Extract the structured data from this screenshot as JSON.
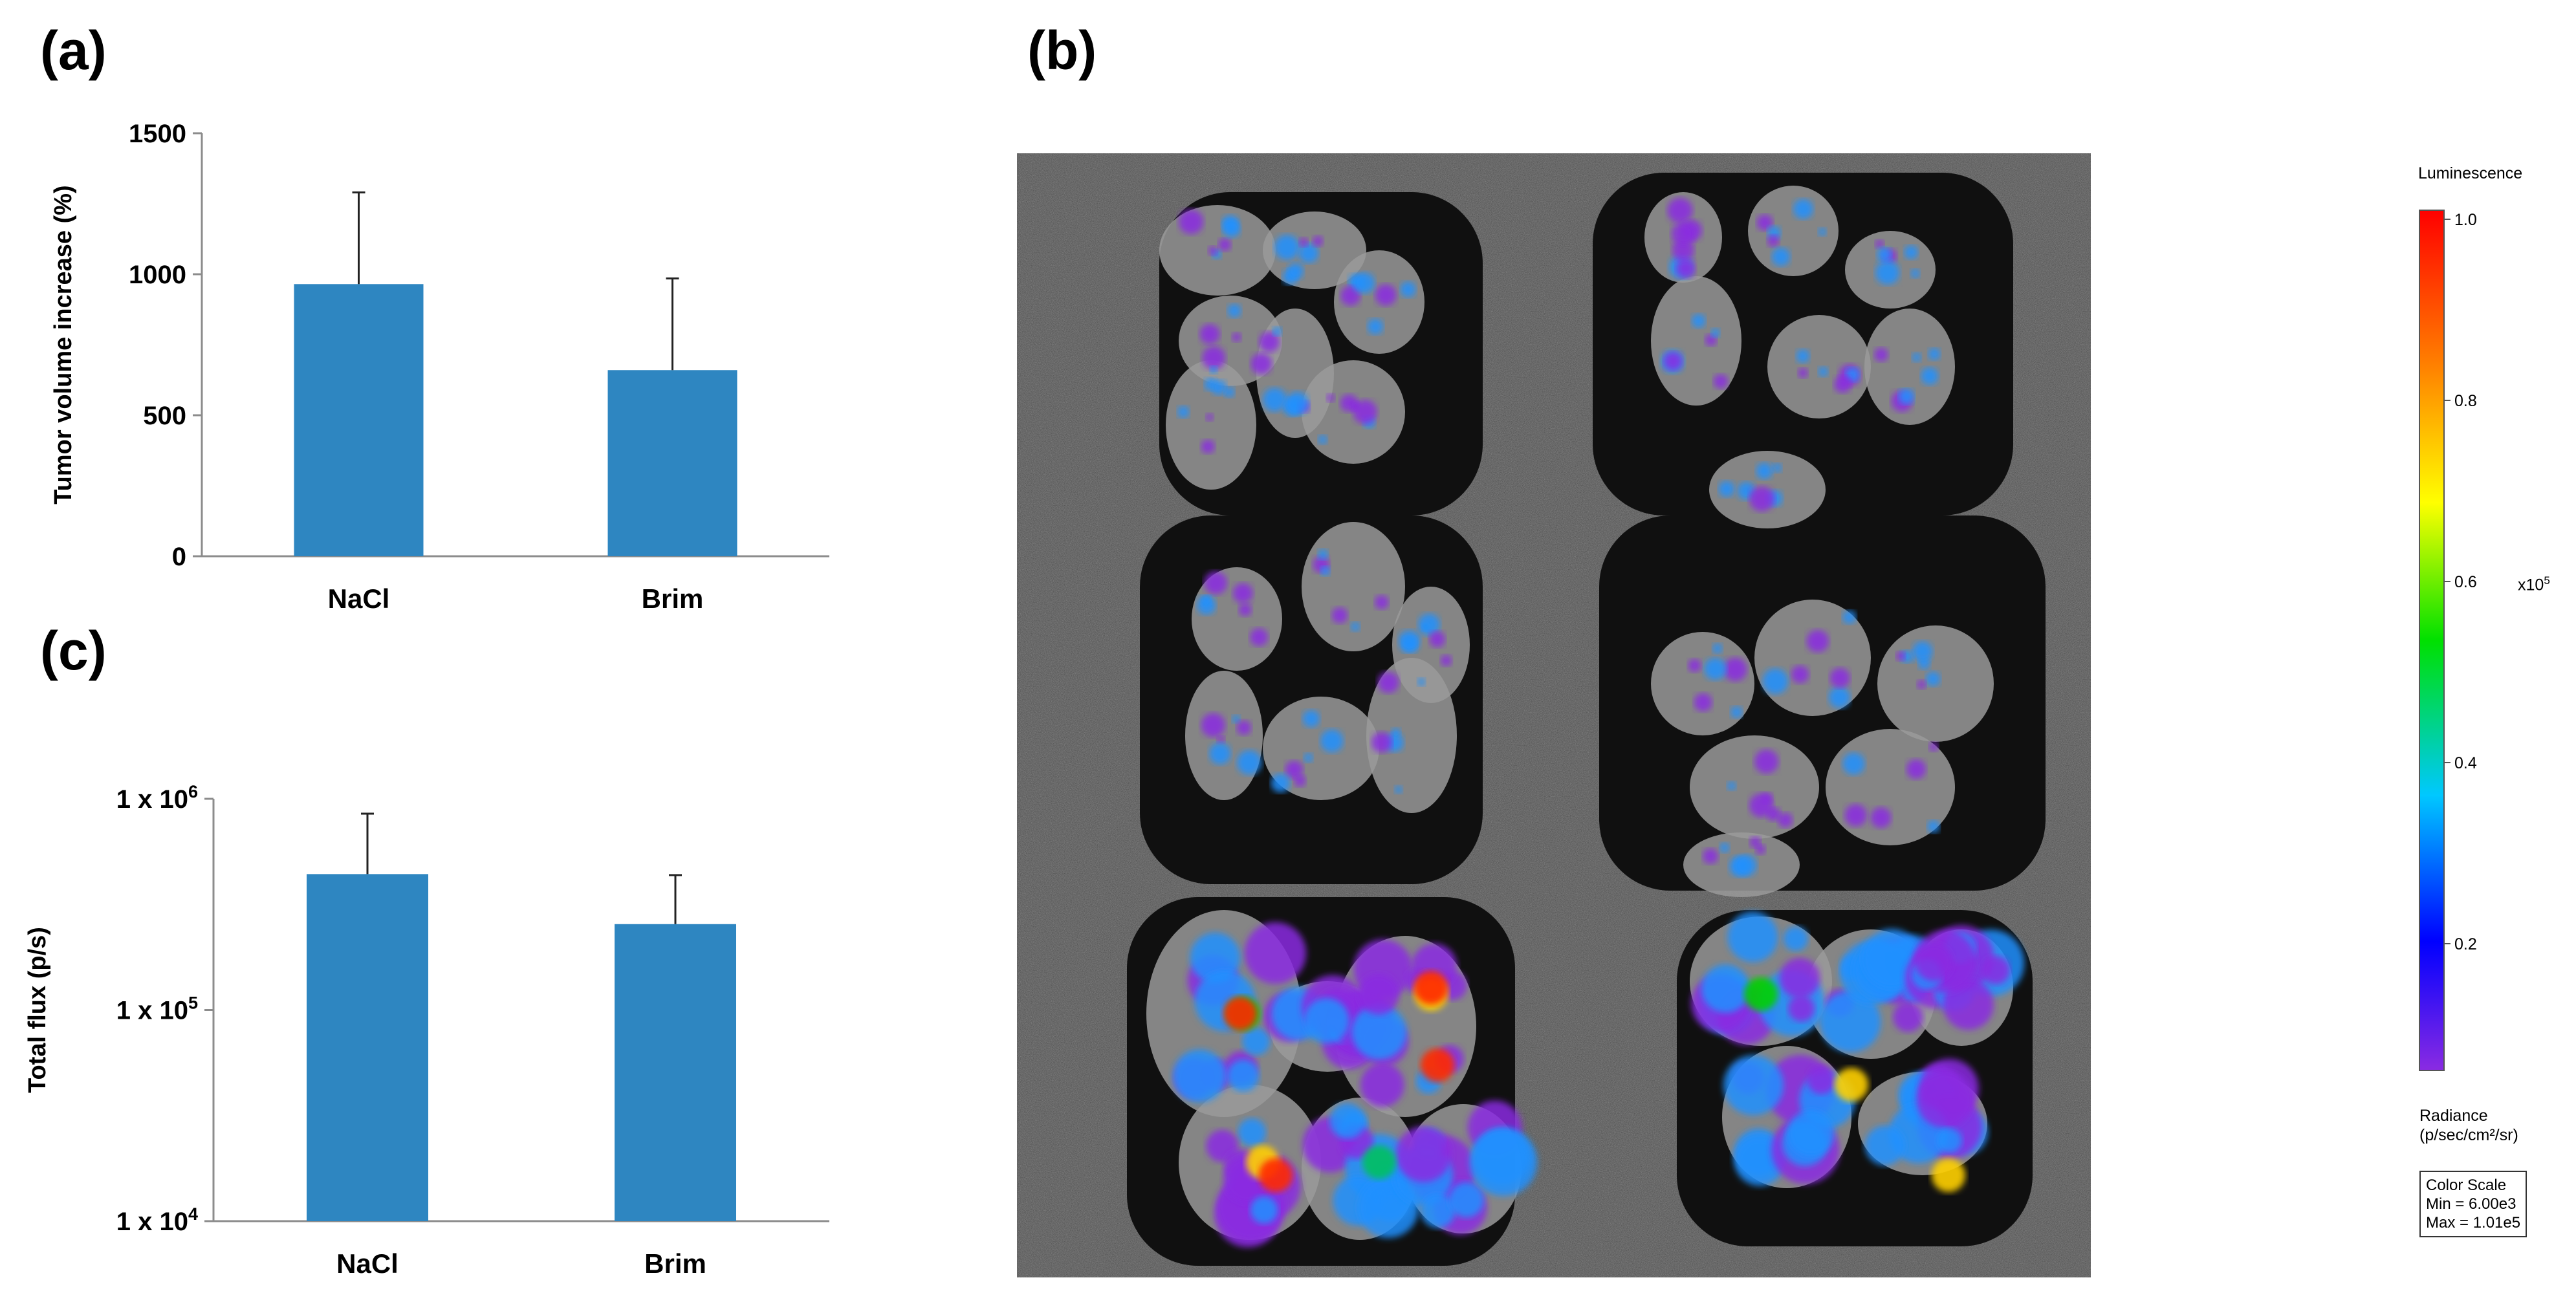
{
  "panels": {
    "a": "(a)",
    "b": "(b)",
    "c": "(c)"
  },
  "chart_data": [
    {
      "id": "a",
      "type": "bar",
      "categories": [
        "NaCl",
        "Brim"
      ],
      "values": [
        965,
        660
      ],
      "errors": [
        325,
        325
      ],
      "ylabel": "Tumor volume increase  (%)",
      "xlabel": "",
      "ylim": [
        0,
        1500
      ],
      "yticks": [
        0,
        500,
        1000,
        1500
      ],
      "ytick_labels": [
        "0",
        "500",
        "1000",
        "1500"
      ],
      "yscale": "linear",
      "bar_color": "#2E86C1",
      "grid": false
    },
    {
      "id": "c",
      "type": "bar",
      "categories": [
        "NaCl",
        "Brim"
      ],
      "values": [
        440000,
        255000
      ],
      "error_tops": [
        850000,
        435000
      ],
      "ylabel": "Total flux (p/s)",
      "xlabel": "",
      "ylim": [
        10000,
        1000000
      ],
      "yticks": [
        10000,
        100000,
        1000000
      ],
      "ytick_labels": [
        {
          "base": "1 x 10",
          "exp": "4"
        },
        {
          "base": "1 x 10",
          "exp": "5"
        },
        {
          "base": "1 x 10",
          "exp": "6"
        }
      ],
      "yscale": "log",
      "bar_color": "#2E86C1",
      "grid": false
    }
  ],
  "image_b": {
    "colors": {
      "background": "#4a4a4a",
      "tissue": "#9a9a9a",
      "signal_low": "#8a2be2",
      "signal_mid": "#1e90ff",
      "signal_high": "#ff2a00"
    }
  },
  "colorbar": {
    "title": "Luminescence",
    "ticks": [
      "1.0",
      "0.8",
      "0.6",
      "0.4",
      "0.2"
    ],
    "tick_values": [
      1.0,
      0.8,
      0.6,
      0.4,
      0.2
    ],
    "range": [
      0.06,
      1.01
    ],
    "multiplier_base": "x10",
    "multiplier_exp": "5",
    "unit_line1": "Radiance",
    "unit_line2": "(p/sec/cm²/sr)",
    "box_line1": "Color Scale",
    "box_line2": "Min = 6.00e3",
    "box_line3": "Max = 1.01e5"
  }
}
